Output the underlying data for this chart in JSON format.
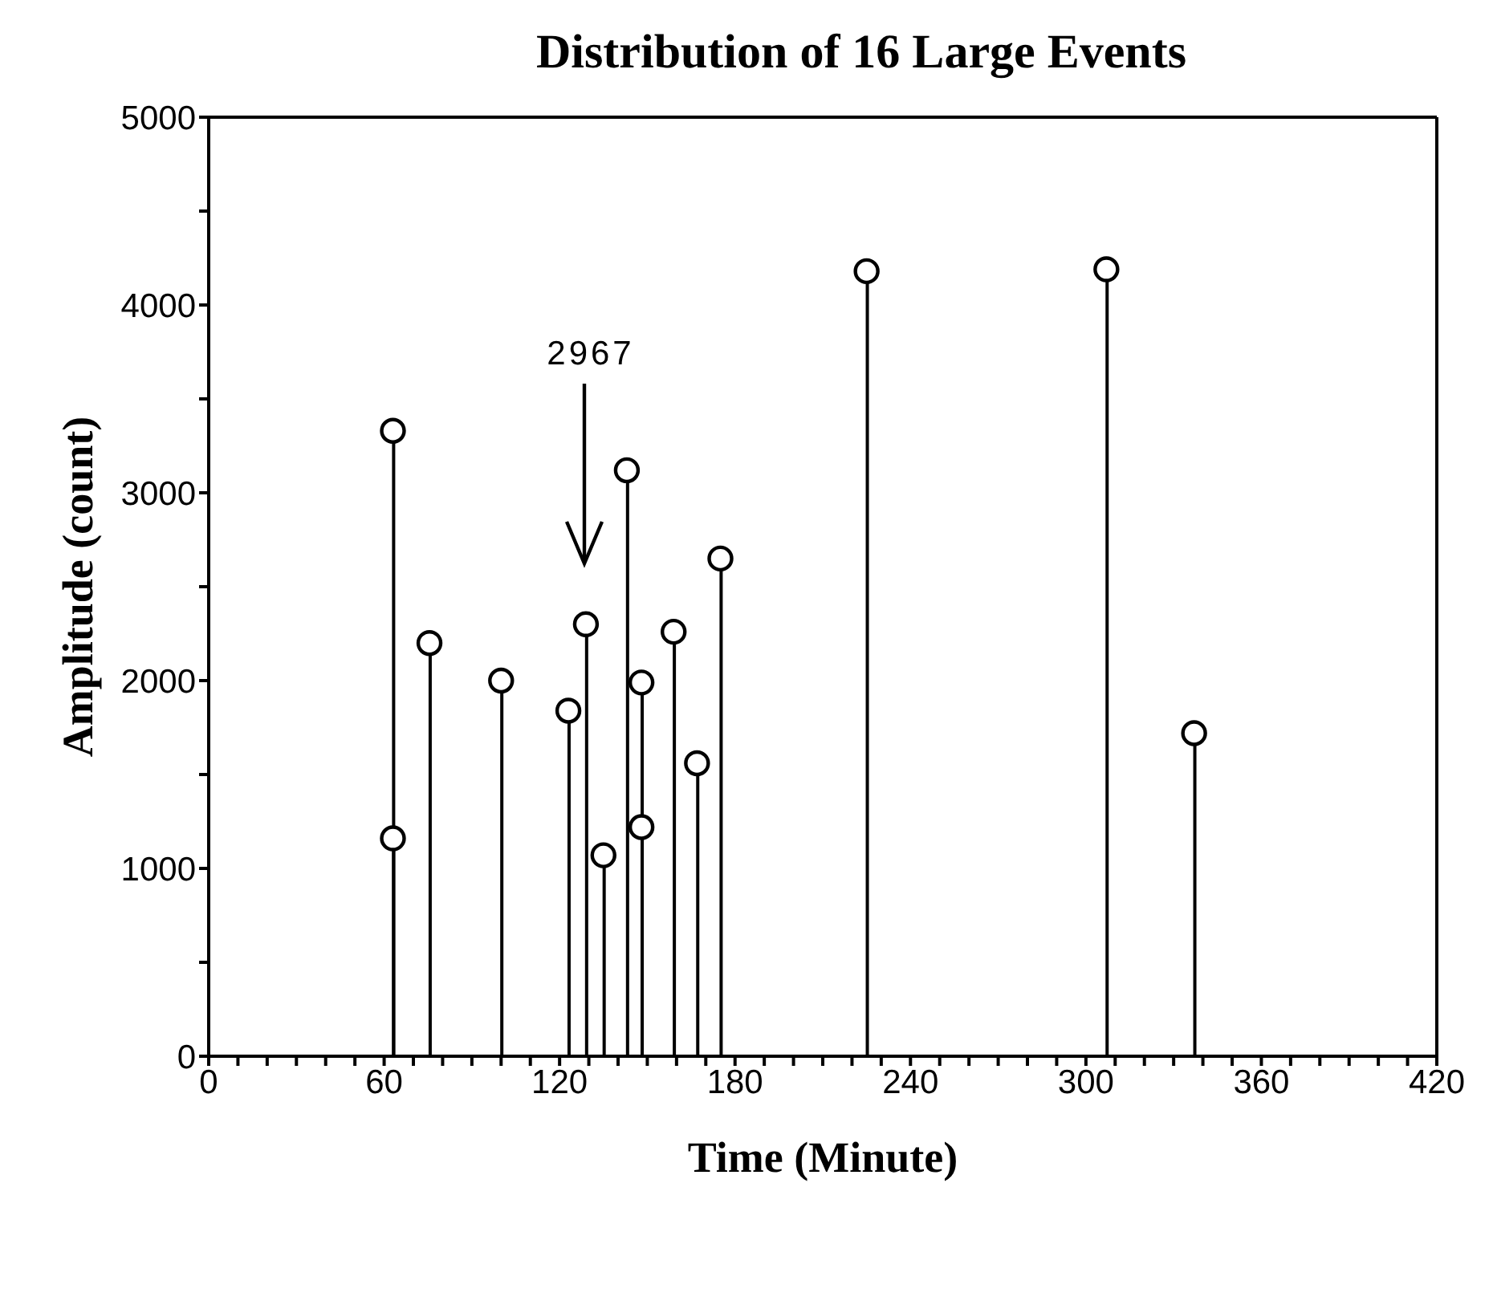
{
  "chart_data": {
    "type": "lollipop",
    "title": "Distribution of 16 Large Events",
    "xlabel": "Time  (Minute)",
    "ylabel": "Amplitude  (count)",
    "x": [
      63,
      63,
      75.5,
      100,
      123,
      129,
      135,
      143,
      148,
      148,
      159,
      167,
      175,
      225,
      307,
      337
    ],
    "values": [
      3330,
      1160,
      2200,
      2000,
      1840,
      2300,
      1070,
      3120,
      1990,
      1220,
      2260,
      1560,
      2650,
      4180,
      4190,
      1720
    ],
    "color": "#000000",
    "marker": "circle",
    "xlim": [
      0,
      420
    ],
    "xticks": [
      0,
      {
        "value": 10,
        "label": null
      },
      {
        "value": 20,
        "label": null
      },
      {
        "value": 30,
        "label": null
      },
      {
        "value": 40,
        "label": null
      },
      {
        "value": 50,
        "label": null
      },
      60,
      {
        "value": 70,
        "label": null
      },
      {
        "value": 80,
        "label": null
      },
      {
        "value": 90,
        "label": null
      },
      {
        "value": 100,
        "label": null
      },
      {
        "value": 110,
        "label": null
      },
      120,
      {
        "value": 130,
        "label": null
      },
      {
        "value": 140,
        "label": null
      },
      {
        "value": 150,
        "label": null
      },
      {
        "value": 160,
        "label": null
      },
      {
        "value": 170,
        "label": null
      },
      180,
      {
        "value": 190,
        "label": null
      },
      {
        "value": 200,
        "label": null
      },
      {
        "value": 210,
        "label": null
      },
      {
        "value": 220,
        "label": null
      },
      {
        "value": 230,
        "label": null
      },
      240,
      {
        "value": 250,
        "label": null
      },
      {
        "value": 260,
        "label": null
      },
      {
        "value": 270,
        "label": null
      },
      {
        "value": 280,
        "label": null
      },
      {
        "value": 290,
        "label": null
      },
      300,
      {
        "value": 310,
        "label": null
      },
      {
        "value": 320,
        "label": null
      },
      {
        "value": 330,
        "label": null
      },
      {
        "value": 340,
        "label": null
      },
      {
        "value": 350,
        "label": null
      },
      360,
      {
        "value": 370,
        "label": null
      },
      {
        "value": 380,
        "label": null
      },
      {
        "value": 390,
        "label": null
      },
      {
        "value": 400,
        "label": null
      },
      {
        "value": 410,
        "label": null
      },
      420
    ],
    "ylim": [
      0,
      5000
    ],
    "yticks": [
      0,
      {
        "value": 500,
        "label": null
      },
      1000,
      {
        "value": 1500,
        "label": null
      },
      2000,
      {
        "value": 2500,
        "label": null
      },
      3000,
      {
        "value": 3500,
        "label": null
      },
      4000,
      {
        "value": 4500,
        "label": null
      },
      5000
    ],
    "annotations": [
      "2967"
    ]
  }
}
